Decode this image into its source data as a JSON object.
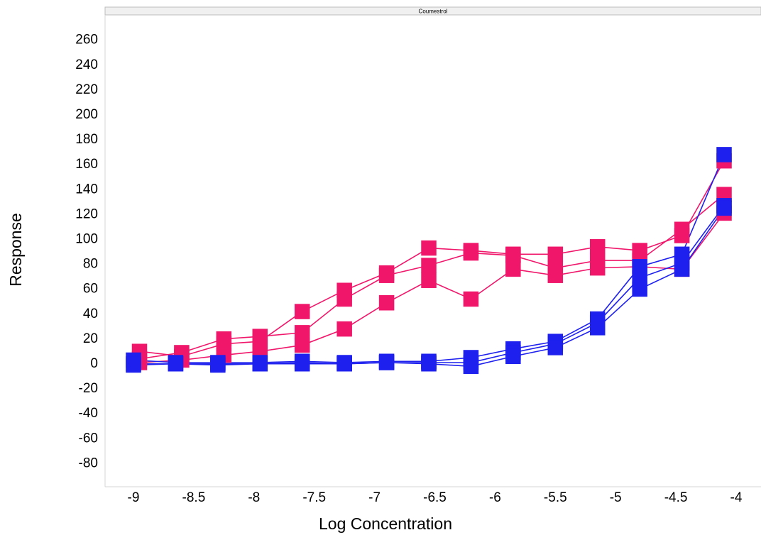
{
  "chart_data": {
    "type": "scatter",
    "title": "Coumestrol",
    "xlabel": "Log Concentration",
    "ylabel": "Response",
    "xlim": [
      -9.1,
      -3.95
    ],
    "ylim": [
      -100,
      270
    ],
    "xticks": [
      -9,
      -8.5,
      -8,
      -7.5,
      -7,
      -6.5,
      -6,
      -5.5,
      -5,
      -4.5,
      -4
    ],
    "xtick_labels": [
      "-9",
      "-8.5",
      "-8",
      "-7.5",
      "-7",
      "-6.5",
      "-6",
      "-5.5",
      "-5",
      "-4.5",
      "-4"
    ],
    "yticks": [
      260,
      240,
      220,
      200,
      180,
      160,
      140,
      120,
      100,
      80,
      60,
      40,
      20,
      0,
      -20,
      -40,
      -60,
      -80
    ],
    "ytick_labels": [
      "260",
      "240",
      "220",
      "200",
      "180",
      "160",
      "140",
      "120",
      "100",
      "80",
      "60",
      "40",
      "20",
      "0",
      "-20",
      "-40",
      "-60",
      "-80"
    ],
    "grid": false,
    "legend": "none",
    "marker": "square",
    "series": [
      {
        "color": "#f0176b",
        "x": [
          -8.95,
          -8.6,
          -8.25,
          -7.95,
          -7.6,
          -7.25,
          -6.9,
          -6.55,
          -6.2,
          -5.85,
          -5.5,
          -5.15,
          -4.8,
          -4.45,
          -4.1
        ],
        "y": [
          9,
          5,
          15,
          17,
          41,
          58,
          72,
          92,
          90,
          87,
          87,
          93,
          90,
          102,
          162
        ]
      },
      {
        "color": "#f0176b",
        "x": [
          -8.95,
          -8.6,
          -8.25,
          -7.95,
          -7.6,
          -7.25,
          -6.9,
          -6.55,
          -6.2,
          -5.85,
          -5.5,
          -5.15,
          -4.8,
          -4.45,
          -4.1
        ],
        "y": [
          3,
          8,
          19,
          21,
          24,
          51,
          70,
          78,
          88,
          86,
          76,
          82,
          82,
          107,
          135
        ]
      },
      {
        "color": "#f0176b",
        "x": [
          -8.95,
          -8.6,
          -8.25,
          -7.95,
          -7.6,
          -7.25,
          -6.9,
          -6.55,
          -6.2,
          -5.85,
          -5.5,
          -5.15,
          -4.8,
          -4.45,
          -4.1
        ],
        "y": [
          0,
          2,
          6,
          9,
          14,
          27,
          48,
          66,
          51,
          75,
          70,
          76,
          77,
          75,
          120
        ]
      },
      {
        "color": "#1e20ee",
        "x": [
          -9.0,
          -8.65,
          -8.3,
          -7.95,
          -7.6,
          -7.25,
          -6.9,
          -6.55,
          -6.2,
          -5.85,
          -5.5,
          -5.15,
          -4.8,
          -4.45,
          -4.1
        ],
        "y": [
          2,
          0,
          0,
          0,
          1,
          0,
          1,
          1,
          4,
          11,
          17,
          35,
          77,
          87,
          167
        ]
      },
      {
        "color": "#1e20ee",
        "x": [
          -9.0,
          -8.65,
          -8.3,
          -7.95,
          -7.6,
          -7.25,
          -6.9,
          -6.55,
          -6.2,
          -5.85,
          -5.5,
          -5.15,
          -4.8,
          -4.45,
          -4.1
        ],
        "y": [
          -1,
          -1,
          -1,
          -1,
          0,
          -1,
          0,
          0,
          0,
          8,
          15,
          32,
          68,
          80,
          126
        ]
      },
      {
        "color": "#1e20ee",
        "x": [
          -9.0,
          -8.65,
          -8.3,
          -7.95,
          -7.6,
          -7.25,
          -6.9,
          -6.55,
          -6.2,
          -5.85,
          -5.5,
          -5.15,
          -4.8,
          -4.45,
          -4.1
        ],
        "y": [
          -2,
          -1,
          -2,
          -1,
          -1,
          -1,
          0,
          -1,
          -3,
          5,
          12,
          28,
          59,
          75,
          124
        ]
      }
    ]
  }
}
